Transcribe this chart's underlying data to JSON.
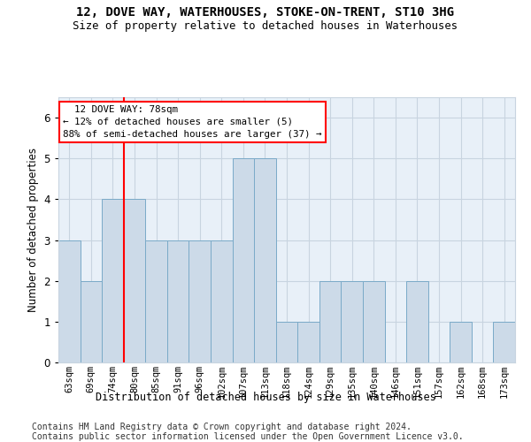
{
  "title1": "12, DOVE WAY, WATERHOUSES, STOKE-ON-TRENT, ST10 3HG",
  "title2": "Size of property relative to detached houses in Waterhouses",
  "xlabel": "Distribution of detached houses by size in Waterhouses",
  "ylabel": "Number of detached properties",
  "categories": [
    "63sqm",
    "69sqm",
    "74sqm",
    "80sqm",
    "85sqm",
    "91sqm",
    "96sqm",
    "102sqm",
    "107sqm",
    "113sqm",
    "118sqm",
    "124sqm",
    "129sqm",
    "135sqm",
    "140sqm",
    "146sqm",
    "151sqm",
    "157sqm",
    "162sqm",
    "168sqm",
    "173sqm"
  ],
  "values": [
    3,
    2,
    4,
    4,
    3,
    3,
    3,
    3,
    5,
    5,
    1,
    1,
    2,
    2,
    2,
    0,
    2,
    0,
    1,
    0,
    1
  ],
  "bar_color": "#ccdae8",
  "bar_edge_color": "#7aaac8",
  "red_line_x": 3.0,
  "ylim": [
    0,
    6.5
  ],
  "yticks": [
    0,
    1,
    2,
    3,
    4,
    5,
    6
  ],
  "annotation_text": "  12 DOVE WAY: 78sqm  \n← 12% of detached houses are smaller (5)\n88% of semi-detached houses are larger (37) →",
  "footer1": "Contains HM Land Registry data © Crown copyright and database right 2024.",
  "footer2": "Contains public sector information licensed under the Open Government Licence v3.0.",
  "bg_color": "#ffffff",
  "plot_bg_color": "#e8f0f8",
  "grid_color": "#c8d4e0"
}
